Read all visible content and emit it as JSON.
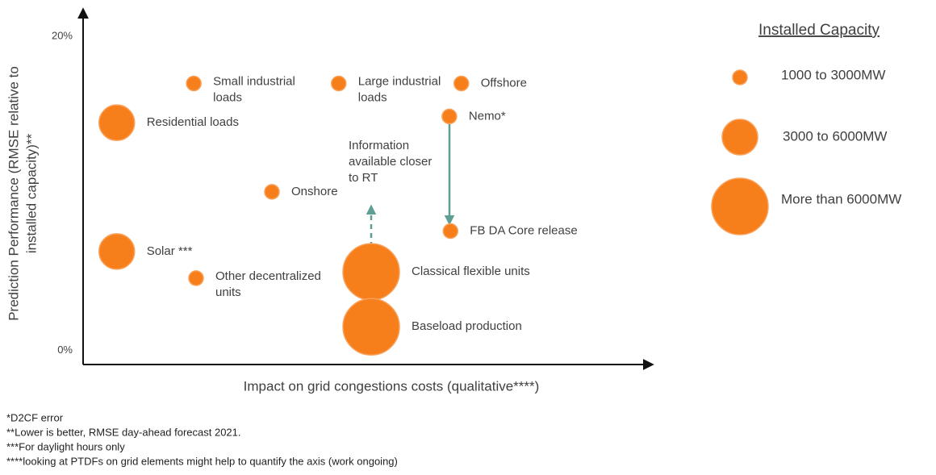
{
  "chart_data": {
    "type": "scatter",
    "x_label": "Impact on grid congestions costs (qualitative****)",
    "y_label": [
      "Prediction Performance (RMSE relative to",
      "installed capacity)**"
    ],
    "xlim": [
      0,
      100
    ],
    "ylim": [
      -0.9,
      21.7
    ],
    "yticks": [
      {
        "value": 0,
        "label": "0%"
      },
      {
        "value": 20,
        "label": "20%"
      }
    ],
    "legend_title": "Installed Capacity",
    "legend": "right",
    "annotation": [
      "Information",
      "available closer",
      "to RT"
    ],
    "series": [
      {
        "name": "1000 to 3000MW",
        "color": "#f77f1b",
        "x": [
          19.4,
          44.8,
          66.3,
          64.2,
          33.1,
          64.4,
          19.8
        ],
        "values": [
          17.0,
          17.0,
          17.0,
          14.9,
          10.1,
          7.6,
          4.6
        ],
        "labels": [
          [
            "Small industrial",
            "loads"
          ],
          [
            "Large industrial",
            "loads"
          ],
          [
            "Offshore"
          ],
          [
            "Nemo*"
          ],
          [
            "Onshore"
          ],
          [
            "FB DA Core release"
          ],
          [
            "Other decentralized",
            "units"
          ]
        ]
      },
      {
        "name": "3000 to 6000MW",
        "color": "#f77f1b",
        "x": [
          5.9,
          5.9
        ],
        "values": [
          14.5,
          6.3
        ],
        "labels": [
          [
            "Residential loads"
          ],
          [
            "Solar ***"
          ]
        ]
      },
      {
        "name": "More than 6000MW",
        "color": "#f77f1b",
        "x": [
          50.5,
          50.5
        ],
        "values": [
          5.0,
          1.5
        ],
        "labels": [
          [
            "Classical flexible units"
          ],
          [
            "Baseload production"
          ]
        ]
      }
    ],
    "footnotes": [
      "*D2CF error",
      "**Lower is better, RMSE day-ahead forecast 2021.",
      "***For daylight hours only",
      "****looking at PTDFs on grid elements might help to quantify the axis (work ongoing)"
    ]
  }
}
